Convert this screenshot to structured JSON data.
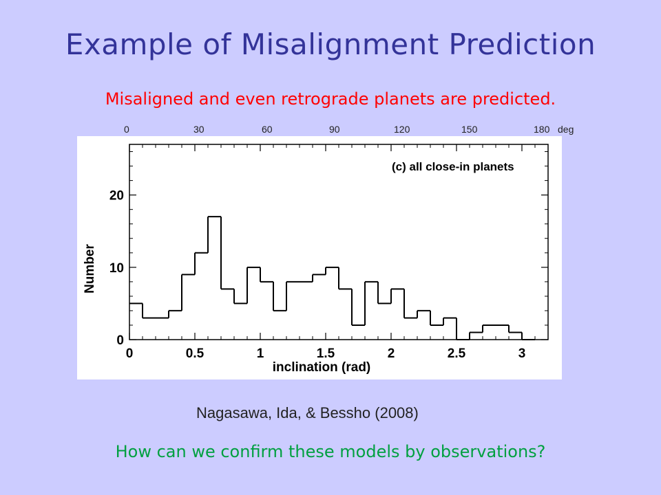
{
  "slide": {
    "title": "Example of Misalignment Prediction",
    "subtitle": "Misaligned and even retrograde planets are predicted.",
    "citation": "Nagasawa, Ida, & Bessho (2008)",
    "question": "How can we confirm these models by observations?"
  },
  "colors": {
    "background": "#ccccff",
    "title": "#333399",
    "subtitle": "#ff0000",
    "question": "#00a040"
  },
  "degree_axis": {
    "ticks": [
      "0",
      "30",
      "60",
      "90",
      "120",
      "150",
      "180"
    ],
    "unit": "deg"
  },
  "chart_data": {
    "type": "bar",
    "style": "step-histogram",
    "annotation": "(c) all close-in planets",
    "xlabel": "inclination (rad)",
    "ylabel": "Number",
    "xlim": [
      0,
      3.2
    ],
    "ylim": [
      0,
      27
    ],
    "xticks": [
      "0",
      "0.5",
      "1",
      "1.5",
      "2",
      "2.5",
      "3"
    ],
    "yticks": [
      "0",
      "10",
      "20"
    ],
    "bin_width": 0.1,
    "bin_starts": [
      0,
      0.1,
      0.2,
      0.3,
      0.4,
      0.5,
      0.6,
      0.7,
      0.8,
      0.9,
      1.0,
      1.1,
      1.2,
      1.3,
      1.4,
      1.5,
      1.6,
      1.7,
      1.8,
      1.9,
      2.0,
      2.1,
      2.2,
      2.3,
      2.4,
      2.5,
      2.6,
      2.7,
      2.8,
      2.9,
      3.0
    ],
    "values": [
      5,
      3,
      3,
      4,
      9,
      12,
      17,
      7,
      5,
      10,
      8,
      4,
      8,
      8,
      9,
      10,
      7,
      2,
      8,
      5,
      7,
      3,
      4,
      2,
      3,
      0,
      1,
      2,
      2,
      1,
      0
    ],
    "grid": false
  }
}
